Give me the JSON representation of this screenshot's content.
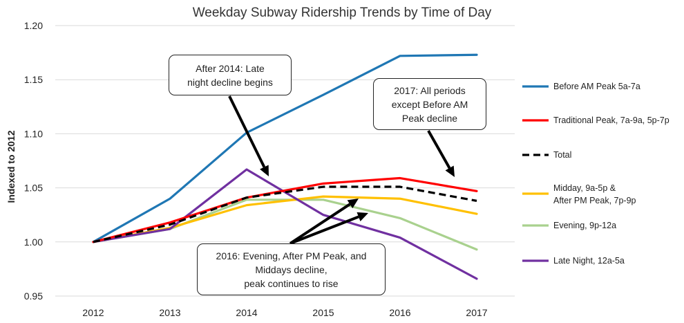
{
  "chart_data": {
    "type": "line",
    "title": "Weekday Subway Ridership Trends by Time of Day",
    "ylabel": "Indexed to 2012",
    "xlabel": "",
    "categories": [
      "2012",
      "2013",
      "2014",
      "2015",
      "2016",
      "2017"
    ],
    "ylim": [
      0.95,
      1.2
    ],
    "yticks": [
      "0.95",
      "1.00",
      "1.05",
      "1.10",
      "1.15",
      "1.20"
    ],
    "grid": true,
    "legend_position": "right",
    "series": [
      {
        "name": "Before AM Peak 5a-7a",
        "color": "#1f77b4",
        "dashed": false,
        "values": [
          1.0,
          1.04,
          1.101,
          1.136,
          1.172,
          1.173
        ]
      },
      {
        "name": "Traditional Peak, 7a-9a, 5p-7p",
        "color": "#ff0000",
        "dashed": false,
        "values": [
          1.0,
          1.018,
          1.041,
          1.054,
          1.059,
          1.047
        ]
      },
      {
        "name": "Total",
        "color": "#000000",
        "dashed": true,
        "values": [
          1.0,
          1.016,
          1.041,
          1.051,
          1.051,
          1.038
        ]
      },
      {
        "name": "Midday, 9a-5p &\nAfter PM Peak, 7p-9p",
        "color": "#ffc000",
        "dashed": false,
        "values": [
          1.0,
          1.013,
          1.034,
          1.042,
          1.04,
          1.026
        ]
      },
      {
        "name": "Evening, 9p-12a",
        "color": "#a9d18e",
        "dashed": false,
        "values": [
          1.0,
          1.012,
          1.039,
          1.039,
          1.022,
          0.993
        ]
      },
      {
        "name": "Late Night, 12a-5a",
        "color": "#7030a0",
        "dashed": false,
        "values": [
          1.0,
          1.012,
          1.067,
          1.025,
          1.004,
          0.966
        ]
      }
    ],
    "annotations": [
      {
        "text": "After 2014: Late\nnight decline begins"
      },
      {
        "text": "2017: All periods\nexcept Before AM\nPeak decline"
      },
      {
        "text": "2016: Evening, After PM Peak, and\nMiddays decline,\npeak continues to rise"
      }
    ]
  }
}
